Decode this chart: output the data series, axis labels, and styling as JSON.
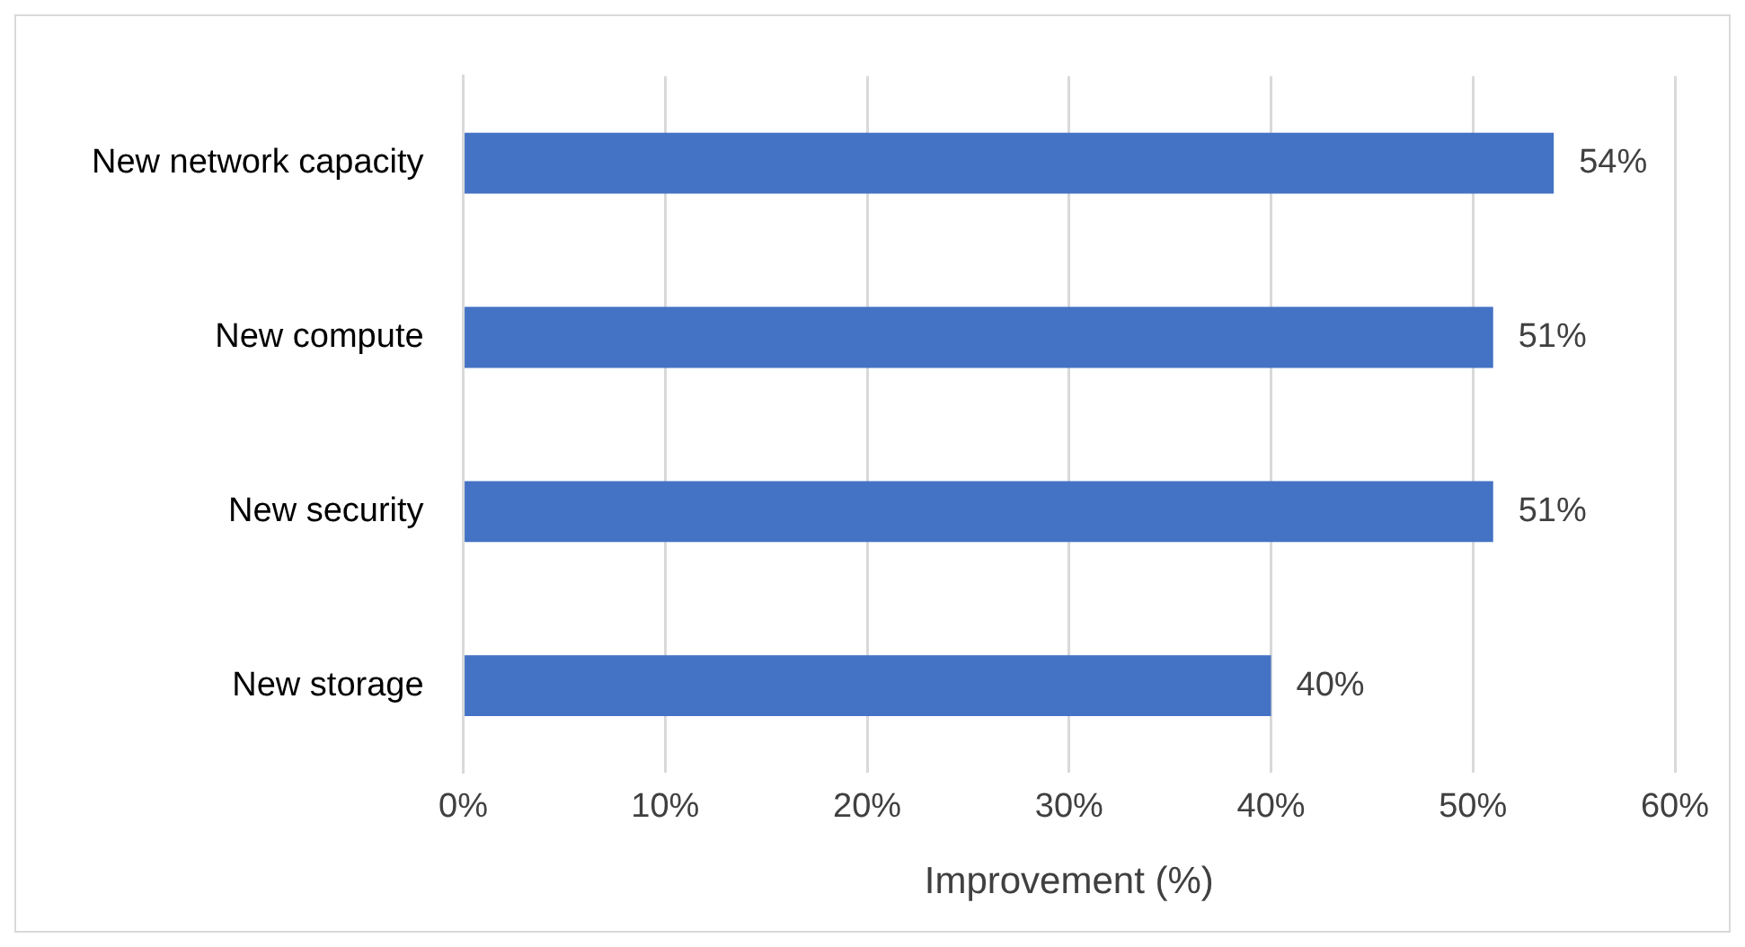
{
  "chart_data": {
    "type": "bar",
    "orientation": "horizontal",
    "xlabel": "Improvement (%)",
    "categories": [
      "New network capacity",
      "New compute",
      "New security",
      "New storage"
    ],
    "values": [
      54,
      51,
      51,
      40
    ],
    "color": "#4472c4",
    "value_labels": [
      "54%",
      "51%",
      "51%",
      "40%"
    ],
    "xlim": [
      0,
      60
    ],
    "xticks": [
      {
        "value": 0,
        "label": "0%"
      },
      {
        "value": 10,
        "label": "10%"
      },
      {
        "value": 20,
        "label": "20%"
      },
      {
        "value": 30,
        "label": "30%"
      },
      {
        "value": 40,
        "label": "40%"
      },
      {
        "value": 50,
        "label": "50%"
      },
      {
        "value": 60,
        "label": "60%"
      }
    ],
    "grid": "x",
    "legend": false
  }
}
